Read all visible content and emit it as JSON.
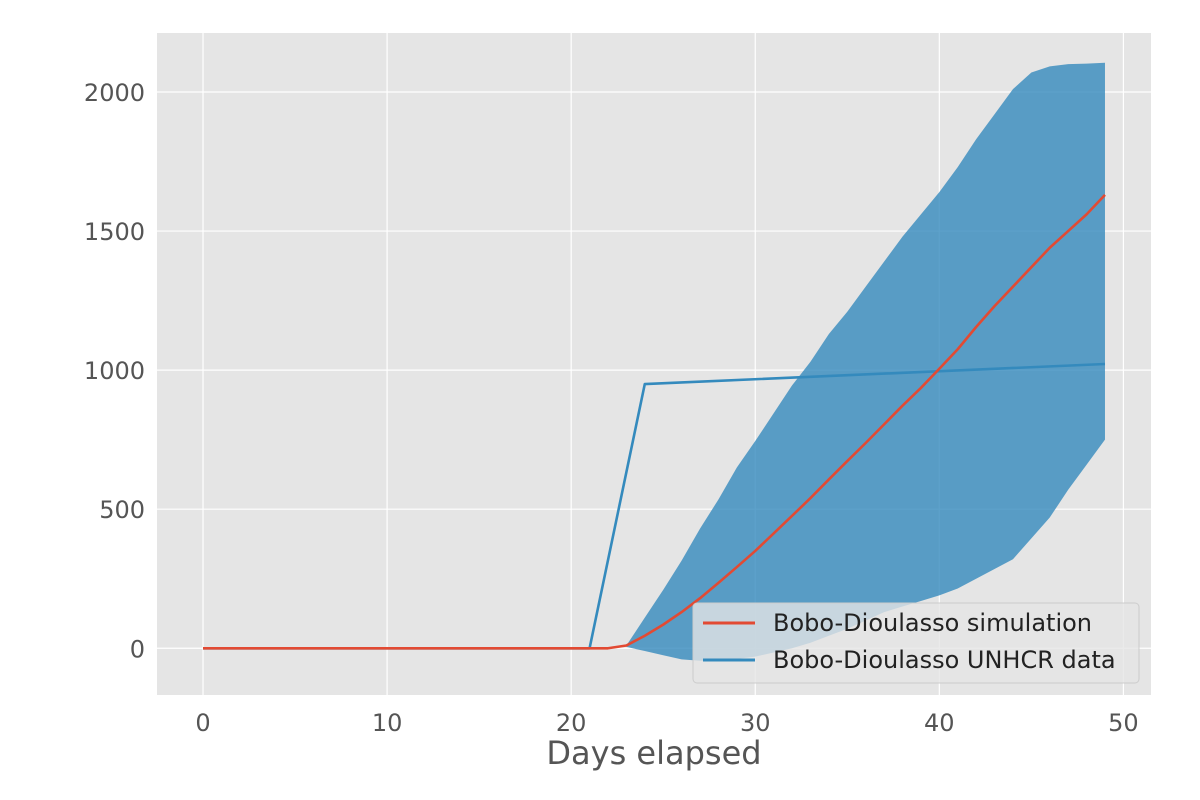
{
  "chart_data": {
    "type": "line",
    "title": "",
    "xlabel": "Days elapsed",
    "ylabel": "",
    "xlim": [
      -2.5,
      51.5
    ],
    "ylim": [
      -168,
      2212
    ],
    "xticks": [
      0,
      10,
      20,
      30,
      40,
      50
    ],
    "yticks": [
      0,
      500,
      1000,
      1500,
      2000
    ],
    "grid": true,
    "legend_position": "lower-right",
    "series": [
      {
        "name": "Bobo-Dioulasso simulation",
        "color": "#E24A33",
        "x": [
          0,
          21,
          22,
          23,
          24,
          25,
          26,
          27,
          28,
          29,
          30,
          31,
          32,
          33,
          34,
          35,
          36,
          37,
          38,
          39,
          40,
          41,
          42,
          43,
          44,
          45,
          46,
          47,
          48,
          49
        ],
        "y": [
          0,
          0,
          0,
          10,
          45,
          85,
          130,
          180,
          235,
          292,
          350,
          413,
          476,
          540,
          607,
          673,
          738,
          805,
          872,
          936,
          1005,
          1075,
          1155,
          1230,
          1300,
          1370,
          1440,
          1500,
          1560,
          1630
        ]
      },
      {
        "name": "Bobo-Dioulasso UNHCR data",
        "color": "#348ABD",
        "x": [
          0,
          21,
          24,
          49
        ],
        "y": [
          0,
          0,
          950,
          1022
        ]
      }
    ],
    "band": {
      "color": "#348ABD",
      "x": [
        23,
        24,
        25,
        26,
        27,
        28,
        29,
        30,
        31,
        32,
        33,
        34,
        35,
        36,
        37,
        38,
        39,
        40,
        41,
        42,
        43,
        44,
        45,
        46,
        47,
        48,
        49
      ],
      "upper": [
        10,
        110,
        210,
        315,
        430,
        535,
        650,
        745,
        845,
        945,
        1030,
        1130,
        1210,
        1300,
        1390,
        1480,
        1560,
        1640,
        1730,
        1830,
        1920,
        2010,
        2070,
        2092,
        2100,
        2102,
        2105
      ],
      "lower": [
        5,
        -10,
        -25,
        -40,
        -45,
        -42,
        -38,
        -30,
        -15,
        0,
        20,
        45,
        70,
        100,
        130,
        150,
        170,
        190,
        215,
        250,
        285,
        320,
        395,
        470,
        570,
        660,
        750
      ]
    }
  }
}
